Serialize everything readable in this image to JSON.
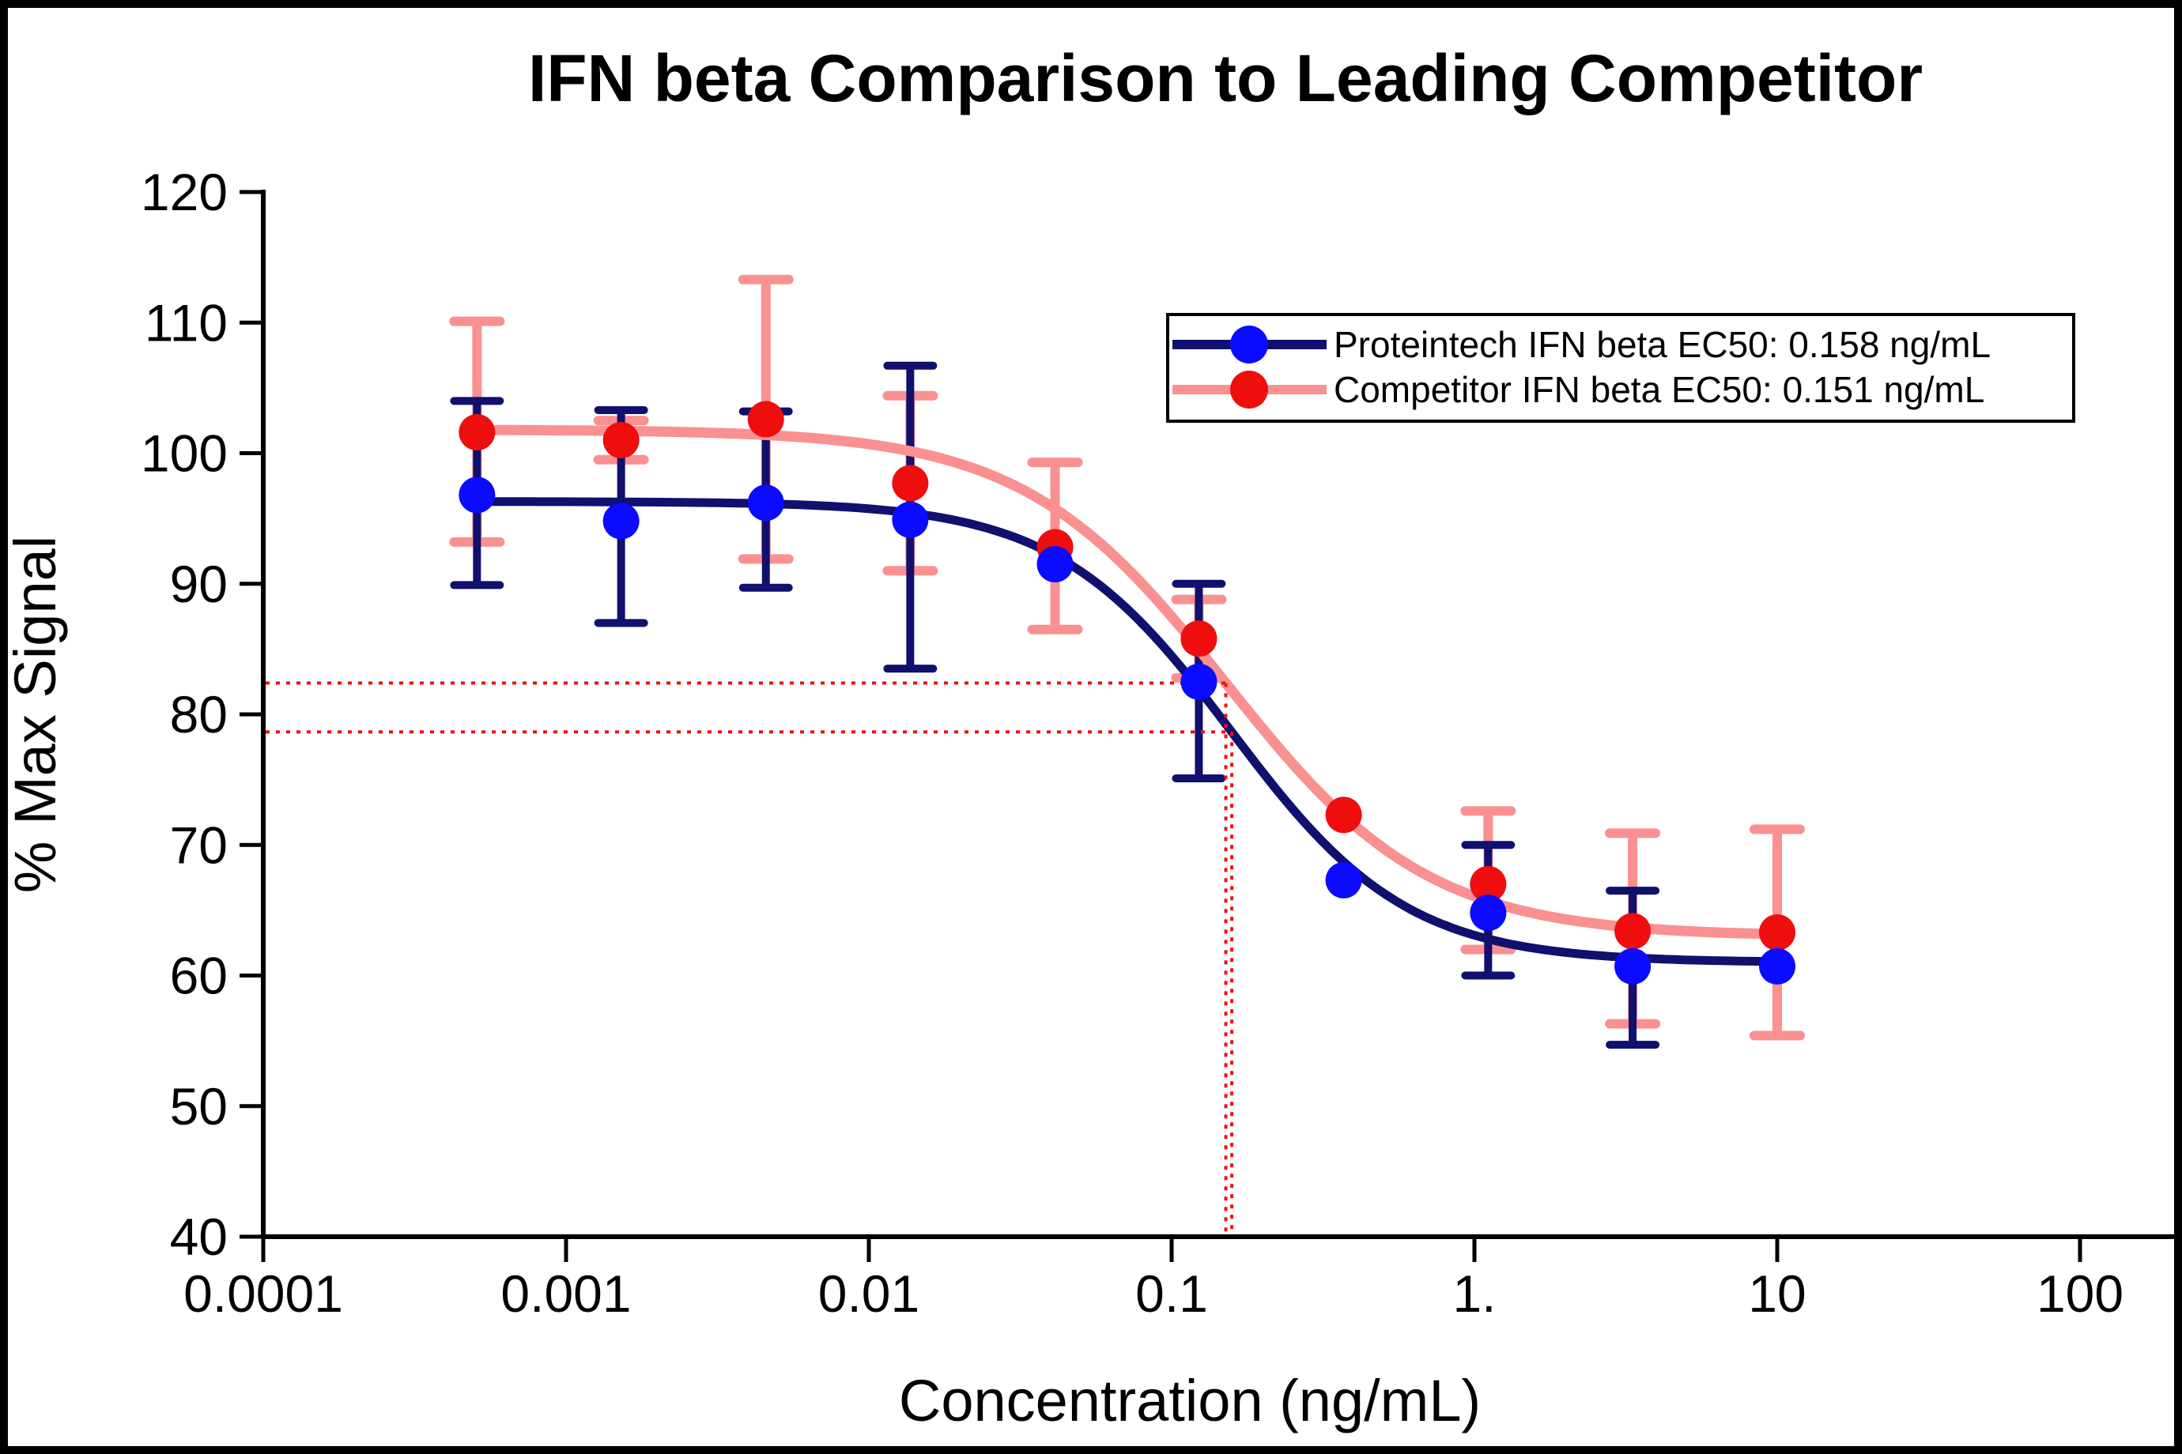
{
  "chart_data": {
    "type": "line",
    "title": "IFN beta Comparison to Leading Competitor",
    "xlabel": "Concentration (ng/mL)",
    "ylabel": "% Max Signal",
    "x_scale": "log",
    "xlim": [
      0.0001,
      100
    ],
    "ylim": [
      40,
      120
    ],
    "grid": false,
    "legend_position": "upper right",
    "axis_color": "#000000",
    "background_color": "#ffffff",
    "border_color": "#000000",
    "y_ticks": [
      40,
      50,
      60,
      70,
      80,
      90,
      100,
      110,
      120
    ],
    "x_tick_values": [
      0.0001,
      0.001,
      0.01,
      0.1,
      1,
      10,
      100
    ],
    "x_tick_labels": [
      "0.0001",
      "0.001",
      "0.01",
      "0.1",
      "1.",
      "10",
      "100"
    ],
    "x": [
      0.000508,
      0.00152,
      0.00457,
      0.0137,
      0.0412,
      0.123,
      0.37,
      1.11,
      3.33,
      10
    ],
    "series": [
      {
        "name": "Proteintech IFN beta EC50: 0.158 ng/mL",
        "ec50_ng_ml": 0.158,
        "marker_color": "#0b0bff",
        "line_color": "#10106e",
        "values": [
          96.8,
          94.8,
          96.2,
          94.9,
          91.5,
          82.5,
          67.3,
          64.8,
          60.7,
          60.7
        ],
        "err_up": [
          7.2,
          8.5,
          7.0,
          11.8,
          0,
          7.5,
          0,
          5.2,
          5.8,
          0
        ],
        "err_down": [
          6.9,
          7.8,
          6.5,
          11.4,
          0,
          7.4,
          0,
          4.8,
          6.0,
          0
        ],
        "fit": {
          "top": 96.3,
          "bottom": 61.0,
          "ec50": 0.158,
          "hill": 1.5
        }
      },
      {
        "name": "Competitor IFN beta EC50: 0.151 ng/mL",
        "ec50_ng_ml": 0.151,
        "marker_color": "#ee0e0e",
        "line_color": "#fa9090",
        "values": [
          101.6,
          101.0,
          102.6,
          97.7,
          92.8,
          85.8,
          72.3,
          67.0,
          63.4,
          63.3
        ],
        "err_up": [
          8.5,
          1.5,
          10.7,
          6.7,
          6.5,
          3.0,
          0,
          5.6,
          7.5,
          7.9
        ],
        "err_down": [
          8.4,
          1.5,
          10.7,
          6.7,
          6.3,
          3.0,
          0,
          5.0,
          7.1,
          7.9
        ],
        "fit": {
          "top": 101.8,
          "bottom": 63.0,
          "ec50": 0.151,
          "hill": 1.3
        }
      }
    ],
    "guides": [
      {
        "y": 82.4,
        "x": 0.151,
        "color": "#ee1111",
        "note": "competitor half-max crosshair"
      },
      {
        "y": 78.65,
        "x": 0.158,
        "color": "#ee1111",
        "note": "proteintech half-max crosshair"
      }
    ]
  }
}
